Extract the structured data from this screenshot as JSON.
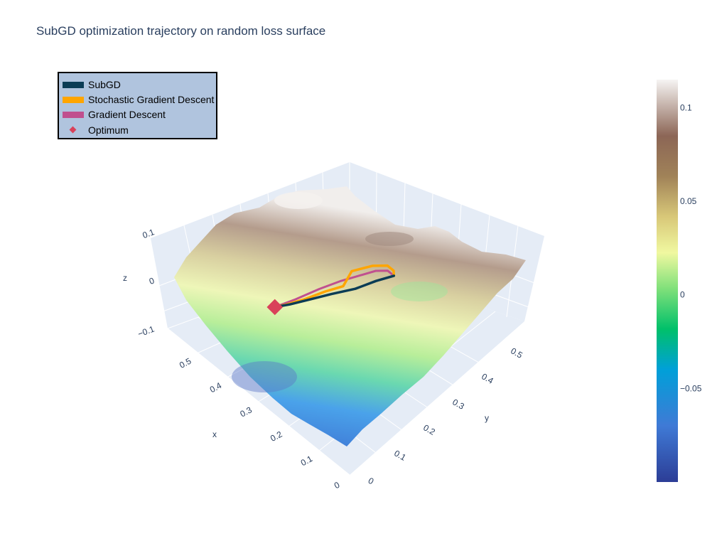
{
  "title": "SubGD optimization trajectory on random loss surface",
  "colors": {
    "subgd": "#0b3c55",
    "sgd": "#ffa500",
    "gd": "#c0508f",
    "optimum": "#d9425a",
    "legend_bg": "#b0c4de",
    "scene_bg": "#e5ecf6"
  },
  "legend": {
    "items": [
      {
        "name": "SubGD",
        "kind": "line",
        "color": "#0b3c55"
      },
      {
        "name": "Stochastic Gradient Descent",
        "kind": "line",
        "color": "#ffa500"
      },
      {
        "name": "Gradient Descent",
        "kind": "line",
        "color": "#c0508f"
      },
      {
        "name": "Optimum",
        "kind": "marker",
        "color": "#d9425a"
      }
    ]
  },
  "chart_data": {
    "type": "surface3d",
    "title": "SubGD optimization trajectory on random loss surface",
    "colorscale": "earth",
    "axes": {
      "x": {
        "label": "x",
        "ticks": [
          "0",
          "0.1",
          "0.2",
          "0.3",
          "0.4",
          "0.5"
        ],
        "range": [
          0,
          0.6
        ]
      },
      "y": {
        "label": "y",
        "ticks": [
          "0",
          "0.1",
          "0.2",
          "0.3",
          "0.4",
          "0.5"
        ],
        "range": [
          0,
          0.6
        ]
      },
      "z": {
        "label": "z",
        "ticks": [
          "−0.1",
          "0",
          "0.1"
        ],
        "range": [
          -0.1,
          0.12
        ]
      }
    },
    "colorbar": {
      "ticks": [
        {
          "label": "0.1",
          "value": 0.1
        },
        {
          "label": "0.05",
          "value": 0.05
        },
        {
          "label": "0",
          "value": 0
        },
        {
          "label": "−0.05",
          "value": -0.05
        }
      ],
      "range": [
        -0.1,
        0.115
      ]
    },
    "series": [
      {
        "name": "SubGD",
        "type": "line3d",
        "x": [
          0.2,
          0.23,
          0.26,
          0.3,
          0.34,
          0.38,
          0.41
        ],
        "y": [
          0.36,
          0.33,
          0.29,
          0.25,
          0.22,
          0.19,
          0.17
        ],
        "z": [
          0.02,
          0.01,
          0.0,
          -0.01,
          -0.025,
          -0.04,
          -0.05
        ]
      },
      {
        "name": "Stochastic Gradient Descent",
        "type": "line3d",
        "x": [
          0.2,
          0.22,
          0.25,
          0.28,
          0.31,
          0.3,
          0.33,
          0.36,
          0.39,
          0.41
        ],
        "y": [
          0.36,
          0.38,
          0.39,
          0.37,
          0.33,
          0.29,
          0.26,
          0.22,
          0.19,
          0.17
        ],
        "z": [
          0.02,
          0.01,
          0.0,
          -0.005,
          -0.01,
          -0.015,
          -0.025,
          -0.035,
          -0.045,
          -0.05
        ]
      },
      {
        "name": "Gradient Descent",
        "type": "line3d",
        "x": [
          0.2,
          0.23,
          0.26,
          0.29,
          0.32,
          0.35,
          0.38,
          0.41
        ],
        "y": [
          0.36,
          0.37,
          0.36,
          0.33,
          0.3,
          0.26,
          0.21,
          0.17
        ],
        "z": [
          0.02,
          0.01,
          0.0,
          -0.01,
          -0.02,
          -0.03,
          -0.04,
          -0.05
        ]
      },
      {
        "name": "Optimum",
        "type": "marker3d",
        "x": [
          0.41
        ],
        "y": [
          0.17
        ],
        "z": [
          -0.05
        ]
      }
    ]
  }
}
